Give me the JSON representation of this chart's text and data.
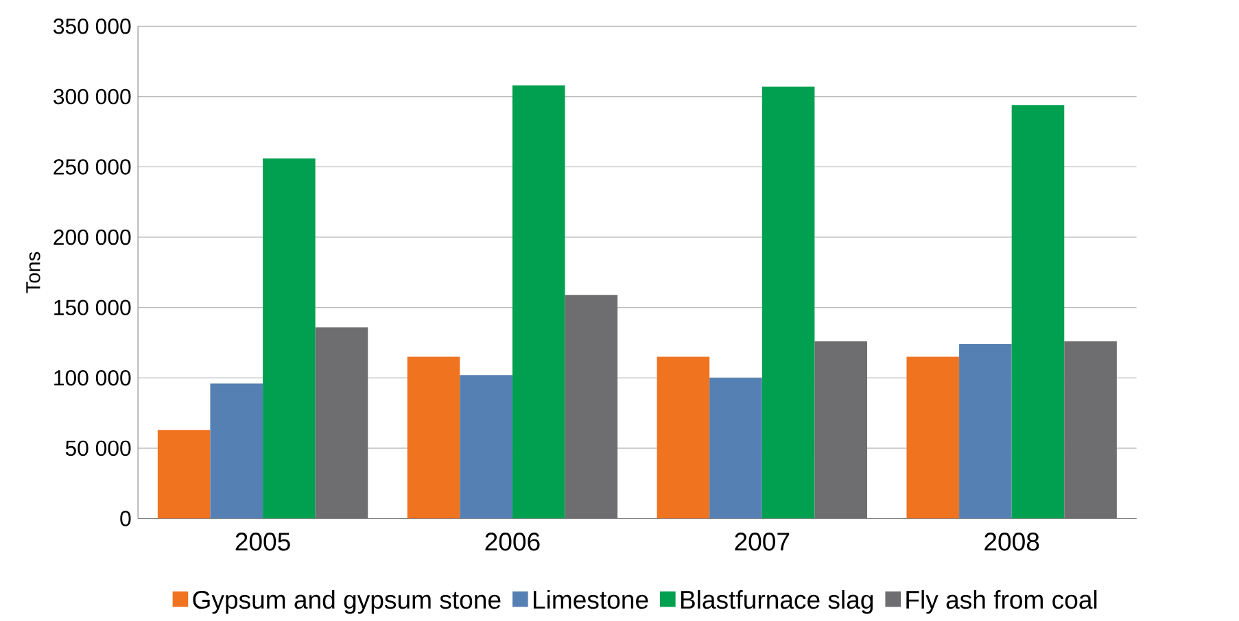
{
  "chart_data": {
    "type": "bar",
    "ylabel": "Tons",
    "categories": [
      "2005",
      "2006",
      "2007",
      "2008"
    ],
    "series": [
      {
        "name": "Gypsum and gypsum stone",
        "color": "#f07320",
        "values": [
          63000,
          115000,
          115000,
          115000
        ]
      },
      {
        "name": "Limestone",
        "color": "#5580b4",
        "values": [
          96000,
          102000,
          100000,
          124000
        ]
      },
      {
        "name": "Blastfurnace slag",
        "color": "#00a050",
        "values": [
          256000,
          308000,
          307000,
          294000
        ]
      },
      {
        "name": "Fly ash from coal",
        "color": "#6e6e70",
        "values": [
          136000,
          159000,
          126000,
          126000
        ]
      }
    ],
    "ylim": [
      0,
      350000
    ],
    "yticks": [
      {
        "value": 0,
        "label": "0"
      },
      {
        "value": 50000,
        "label": "50 000"
      },
      {
        "value": 100000,
        "label": "100 000"
      },
      {
        "value": 150000,
        "label": "150 000"
      },
      {
        "value": 200000,
        "label": "200 000"
      },
      {
        "value": 250000,
        "label": "250 000"
      },
      {
        "value": 300000,
        "label": "300 000"
      },
      {
        "value": 350000,
        "label": "350 000"
      }
    ],
    "grid": "y",
    "legend": "bottom"
  }
}
